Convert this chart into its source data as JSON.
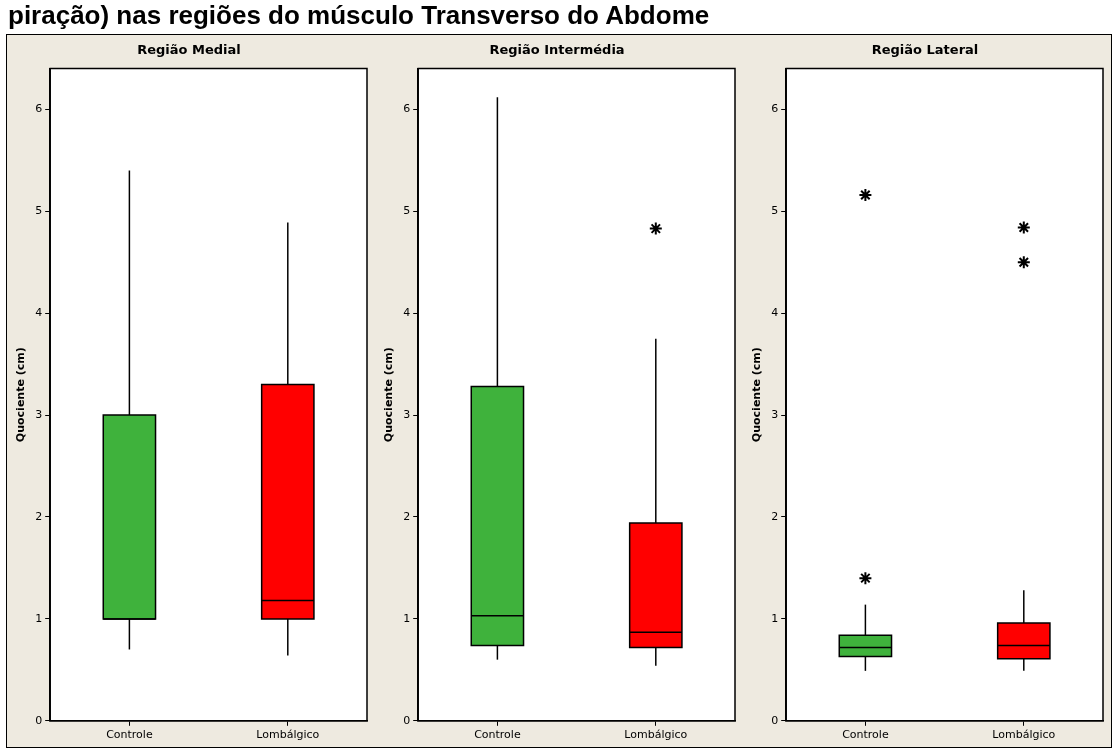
{
  "chart_data": [
    {
      "type": "box",
      "title": "Região Medial",
      "ylabel": "Quociente (cm)",
      "categories": [
        "Controle",
        "Lombálgico"
      ],
      "colors": [
        "#3fb23c",
        "#ff0000"
      ],
      "ylim": [
        0,
        6.4
      ],
      "yticks": [
        0,
        1,
        2,
        3,
        4,
        5,
        6
      ],
      "marker": "star",
      "annotations": [
        "piração) nas regiões do músculo Transverso do Abdome"
      ],
      "boxes": [
        {
          "low": 0.7,
          "q1": 1.0,
          "median": 1.0,
          "q3": 3.0,
          "high": 5.4
        },
        {
          "low": 0.64,
          "q1": 1.0,
          "median": 1.18,
          "q3": 3.3,
          "high": 4.89
        }
      ]
    },
    {
      "type": "box",
      "title": "Região Intermédia",
      "ylabel": "Quociente (cm)",
      "categories": [
        "Controle",
        "Lombálgico"
      ],
      "colors": [
        "#3fb23c",
        "#ff0000"
      ],
      "ylim": [
        0,
        6.4
      ],
      "yticks": [
        0,
        1,
        2,
        3,
        4,
        5,
        6
      ],
      "marker": "star",
      "boxes": [
        {
          "low": 0.6,
          "q1": 0.74,
          "median": 1.03,
          "q3": 3.28,
          "high": 6.12
        },
        {
          "low": 0.54,
          "q1": 0.72,
          "median": 0.87,
          "q3": 1.94,
          "high": 3.75,
          "outliers": [
            4.83
          ]
        }
      ]
    },
    {
      "type": "box",
      "title": "Região Lateral",
      "ylabel": "Quociente (cm)",
      "categories": [
        "Controle",
        "Lombálgico"
      ],
      "colors": [
        "#3fb23c",
        "#ff0000"
      ],
      "ylim": [
        0,
        6.4
      ],
      "yticks": [
        0,
        1,
        2,
        3,
        4,
        5,
        6
      ],
      "marker": "star",
      "boxes": [
        {
          "low": 0.49,
          "q1": 0.63,
          "median": 0.72,
          "q3": 0.84,
          "high": 1.14,
          "outliers": [
            5.16,
            1.4
          ]
        },
        {
          "low": 0.49,
          "q1": 0.61,
          "median": 0.74,
          "q3": 0.96,
          "high": 1.28,
          "outliers": [
            4.84,
            4.5
          ]
        }
      ]
    }
  ]
}
